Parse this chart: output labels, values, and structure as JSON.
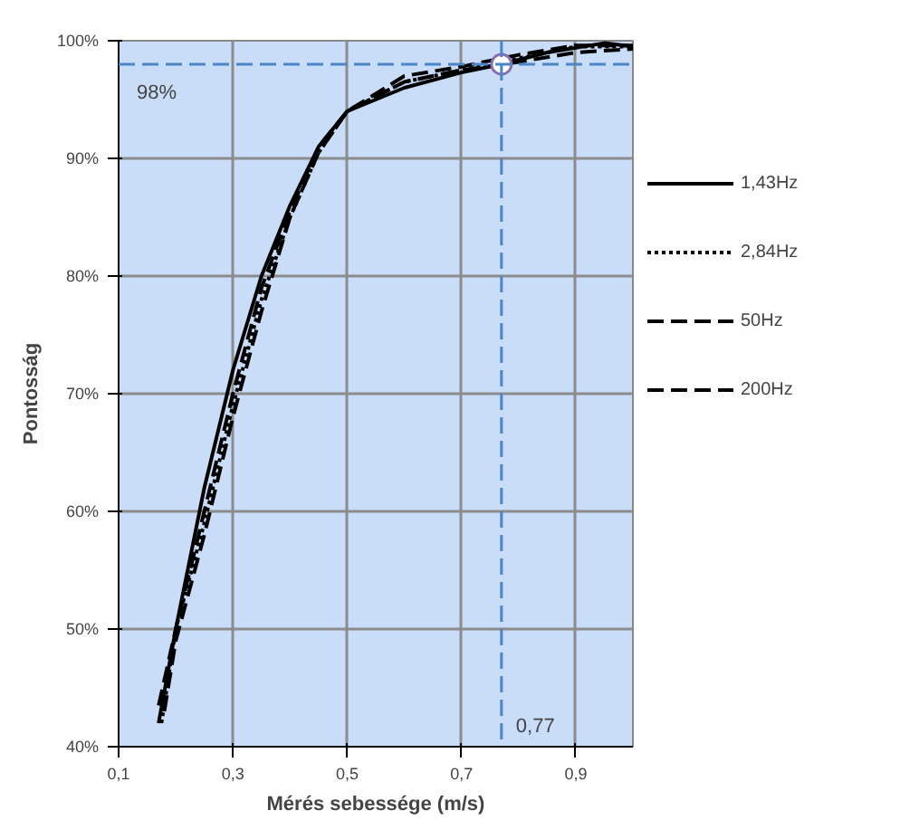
{
  "chart_data": {
    "type": "line",
    "xlabel": "Mérés sebessége (m/s)",
    "ylabel": "Pontosság",
    "xlim": [
      0.1,
      1.0
    ],
    "ylim": [
      40,
      100
    ],
    "xticks": [
      {
        "value": 0.1,
        "label": "0,1"
      },
      {
        "value": 0.3,
        "label": "0,3"
      },
      {
        "value": 0.5,
        "label": "0,5"
      },
      {
        "value": 0.7,
        "label": "0,7"
      },
      {
        "value": 0.9,
        "label": "0,9"
      }
    ],
    "yticks": [
      {
        "value": 40,
        "label": "40%"
      },
      {
        "value": 50,
        "label": "50%"
      },
      {
        "value": 60,
        "label": "60%"
      },
      {
        "value": 70,
        "label": "70%"
      },
      {
        "value": 80,
        "label": "80%"
      },
      {
        "value": 90,
        "label": "90%"
      },
      {
        "value": 100,
        "label": "100%"
      }
    ],
    "grid": true,
    "legend": "right",
    "marker": "none",
    "series": [
      {
        "name": "1,43Hz",
        "color": "#000000",
        "line_style": "solid",
        "x": [
          0.17,
          0.2,
          0.25,
          0.3,
          0.35,
          0.4,
          0.45,
          0.5,
          0.6,
          0.7,
          0.77,
          0.85,
          0.95,
          1.0
        ],
        "values": [
          42,
          50,
          62,
          72,
          80,
          86,
          91,
          94,
          96,
          97.3,
          98,
          99,
          99.8,
          99.5
        ]
      },
      {
        "name": "2,84Hz",
        "color": "#000000",
        "line_style": "dotted",
        "x": [
          0.175,
          0.2,
          0.25,
          0.3,
          0.35,
          0.4,
          0.45,
          0.5,
          0.6,
          0.7,
          0.8,
          0.9,
          1.0
        ],
        "values": [
          42,
          50,
          59,
          69,
          78,
          85,
          90.5,
          94,
          96.5,
          97.5,
          98.5,
          99.5,
          99.5
        ]
      },
      {
        "name": "50Hz",
        "color": "#000000",
        "line_style": "dashed",
        "x": [
          0.18,
          0.2,
          0.25,
          0.3,
          0.35,
          0.4,
          0.45,
          0.5,
          0.6,
          0.7,
          0.8,
          0.9,
          1.0
        ],
        "values": [
          43,
          49,
          58,
          68,
          77,
          85,
          90.5,
          94,
          97,
          97.8,
          98.8,
          99.6,
          99.6
        ]
      },
      {
        "name": "200Hz",
        "color": "#000000",
        "line_style": "dashed",
        "x": [
          0.17,
          0.2,
          0.25,
          0.3,
          0.35,
          0.4,
          0.45,
          0.5,
          0.6,
          0.7,
          0.8,
          0.9,
          1.0
        ],
        "values": [
          43.5,
          50,
          60,
          70,
          79,
          85.5,
          91,
          94,
          96.5,
          97.5,
          98.2,
          99,
          99.3
        ]
      }
    ],
    "ref_lines": [
      {
        "axis": "y",
        "value": 98,
        "label": "98%",
        "color": "#4a86c8",
        "line_style": "dashed"
      },
      {
        "axis": "x",
        "value": 0.77,
        "label": "0,77",
        "color": "#4a86c8",
        "line_style": "dashed"
      }
    ]
  }
}
